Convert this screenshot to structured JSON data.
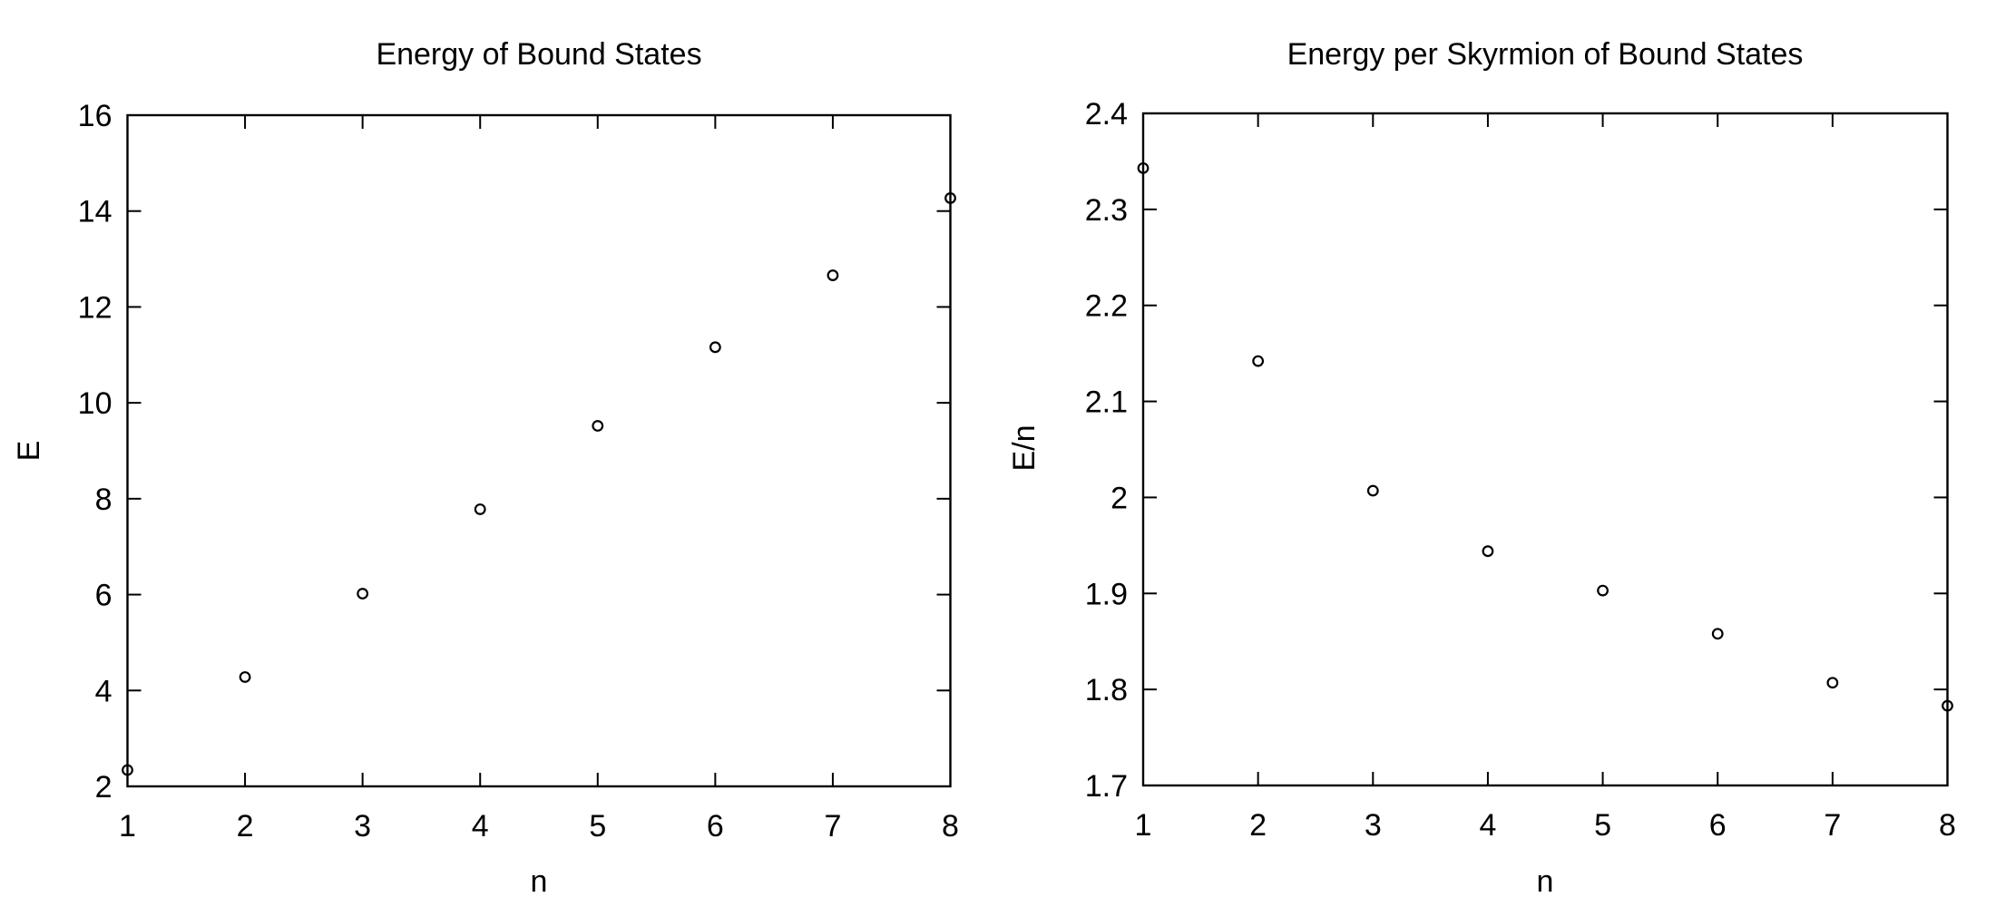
{
  "figure": {
    "background_color": "#ffffff",
    "text_color": "#000000",
    "marker_glyph": "open-circle"
  },
  "chart_data": [
    {
      "type": "scatter",
      "title": "Energy of Bound States",
      "xlabel": "n",
      "ylabel": "E",
      "x": [
        1,
        2,
        3,
        4,
        5,
        6,
        7,
        8
      ],
      "y": [
        2.34,
        4.28,
        6.02,
        7.78,
        9.52,
        11.16,
        12.66,
        14.27
      ],
      "xlim": [
        1,
        8
      ],
      "ylim": [
        2,
        16
      ],
      "xtick_values": [
        1,
        2,
        3,
        4,
        5,
        6,
        7,
        8
      ],
      "xtick_labels": [
        "1",
        "2",
        "3",
        "4",
        "5",
        "6",
        "7",
        "8"
      ],
      "ytick_values": [
        2,
        4,
        6,
        8,
        10,
        12,
        14,
        16
      ],
      "ytick_labels": [
        "2",
        "4",
        "6",
        "8",
        "10",
        "12",
        "14",
        "16"
      ],
      "grid": false,
      "legend": null,
      "marker": "open-circle",
      "marker_color": "#000000"
    },
    {
      "type": "scatter",
      "title": "Energy per Skyrmion of Bound States",
      "xlabel": "n",
      "ylabel": "E/n",
      "x": [
        1,
        2,
        3,
        4,
        5,
        6,
        7,
        8
      ],
      "y": [
        2.343,
        2.142,
        2.007,
        1.944,
        1.903,
        1.858,
        1.807,
        1.783
      ],
      "xlim": [
        1,
        8
      ],
      "ylim": [
        1.7,
        2.4
      ],
      "xtick_values": [
        1,
        2,
        3,
        4,
        5,
        6,
        7,
        8
      ],
      "xtick_labels": [
        "1",
        "2",
        "3",
        "4",
        "5",
        "6",
        "7",
        "8"
      ],
      "ytick_values": [
        1.7,
        1.8,
        1.9,
        2.0,
        2.1,
        2.2,
        2.3,
        2.4
      ],
      "ytick_labels": [
        "1.7",
        "1.8",
        "1.9",
        "2",
        "2.1",
        "2.2",
        "2.3",
        "2.4"
      ],
      "grid": false,
      "legend": null,
      "marker": "open-circle",
      "marker_color": "#000000"
    }
  ]
}
